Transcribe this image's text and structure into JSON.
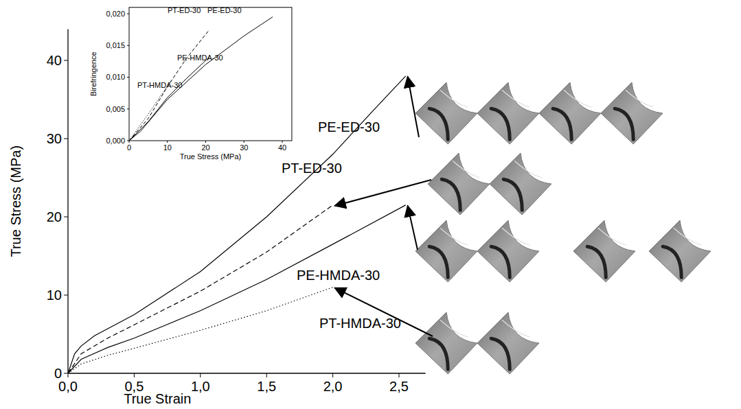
{
  "chart_data": [
    {
      "type": "line",
      "x_label": "True Strain",
      "y_label": "True Stress (MPa)",
      "xlim": [
        0,
        2.7
      ],
      "ylim": [
        0,
        44
      ],
      "xticks": [
        {
          "value": 0,
          "label": "0,0"
        },
        {
          "value": 0.5,
          "label": "0,5"
        },
        {
          "value": 1,
          "label": "1,0"
        },
        {
          "value": 1.5,
          "label": "1,5"
        },
        {
          "value": 2,
          "label": "2,0"
        },
        {
          "value": 2.5,
          "label": "2,5"
        }
      ],
      "yticks": [
        0,
        10,
        20,
        30,
        40
      ],
      "grid": false,
      "series": [
        {
          "name": "PE-ED-30",
          "color": "#000000",
          "line_style": "solid",
          "x": [
            0,
            0.05,
            0.1,
            0.2,
            0.5,
            1.0,
            1.5,
            2.0,
            2.3,
            2.55
          ],
          "values": [
            0,
            2.5,
            3.5,
            4.8,
            7.5,
            13,
            20,
            28,
            33.5,
            38
          ]
        },
        {
          "name": "PT-ED-30",
          "color": "#000000",
          "line_style": "dash",
          "x": [
            0,
            0.1,
            0.3,
            0.5,
            1.0,
            1.5,
            2.0
          ],
          "values": [
            0,
            2.5,
            4.5,
            6.2,
            10.5,
            15.5,
            21.5
          ]
        },
        {
          "name": "PE-HMDA-30",
          "color": "#000000",
          "line_style": "solid",
          "x": [
            0,
            0.1,
            0.3,
            0.5,
            1.0,
            1.5,
            2.0,
            2.55
          ],
          "values": [
            0,
            1.8,
            3.3,
            4.5,
            8,
            12,
            16.5,
            21.5
          ]
        },
        {
          "name": "PT-HMDA-30",
          "color": "#000000",
          "line_style": "dot",
          "x": [
            0,
            0.1,
            0.3,
            0.5,
            1.0,
            1.5,
            2.0
          ],
          "values": [
            0,
            1.2,
            2.3,
            3.2,
            5.5,
            8,
            11
          ]
        }
      ]
    },
    {
      "type": "line",
      "x_label": "True Stress (MPa)",
      "y_label": "Birefringence",
      "xlim": [
        0,
        42.5
      ],
      "ylim": [
        0,
        0.021
      ],
      "xticks": [
        0,
        10,
        20,
        30,
        40
      ],
      "yticks": [
        {
          "value": 0,
          "label": "0,000"
        },
        {
          "value": 0.005,
          "label": "0,005"
        },
        {
          "value": 0.01,
          "label": "0,010"
        },
        {
          "value": 0.015,
          "label": "0,015"
        },
        {
          "value": 0.02,
          "label": "0,020"
        }
      ],
      "grid": false,
      "series": [
        {
          "name": "PE-ED-30",
          "color": "#000000",
          "line_style": "solid",
          "x": [
            0,
            3,
            10,
            20,
            30,
            37.5
          ],
          "values": [
            0,
            0.0015,
            0.0065,
            0.012,
            0.0165,
            0.0195
          ]
        },
        {
          "name": "PT-ED-30",
          "color": "#000000",
          "line_style": "dash",
          "x": [
            0,
            5,
            10,
            15,
            21
          ],
          "values": [
            0,
            0.0035,
            0.0085,
            0.013,
            0.0175
          ]
        },
        {
          "name": "PE-HMDA-30",
          "color": "#000000",
          "line_style": "solid",
          "x": [
            0,
            5,
            10,
            15,
            21
          ],
          "values": [
            0,
            0.003,
            0.0068,
            0.0098,
            0.0132
          ]
        },
        {
          "name": "PT-HMDA-30",
          "color": "#000000",
          "line_style": "dot",
          "x": [
            0,
            5,
            11
          ],
          "values": [
            0,
            0.0042,
            0.0095
          ]
        }
      ]
    }
  ]
}
